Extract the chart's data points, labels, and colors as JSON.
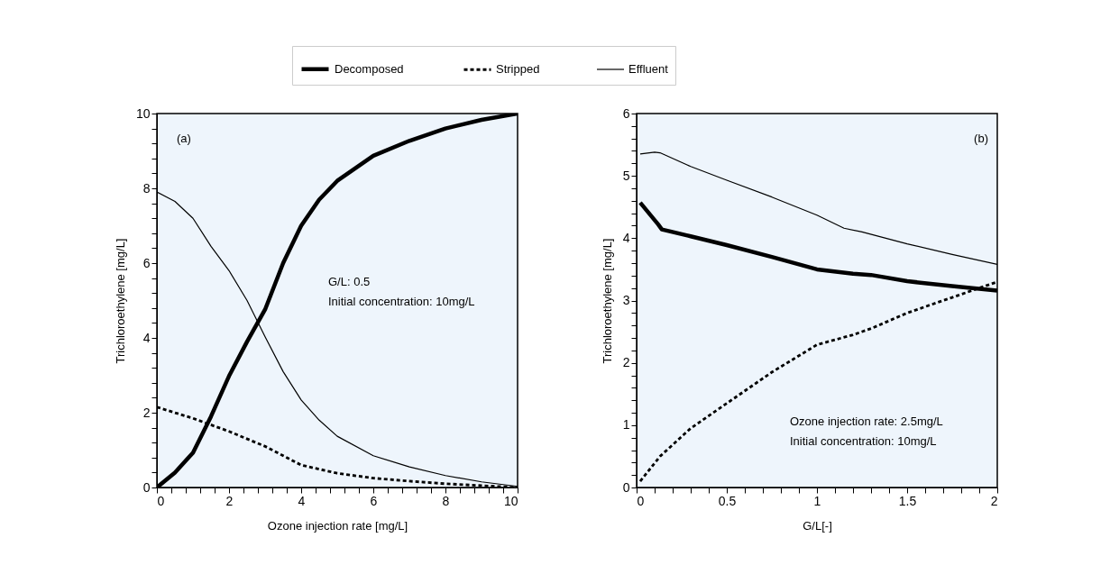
{
  "chart_data": [
    {
      "type": "line",
      "xlabel": "Ozone injection rate [mg/L]",
      "ylabel": "Trichloroethylene [mg/L]",
      "legend": "top",
      "grid": false,
      "annotations": [
        "(a)",
        "G/L: 0.5",
        "Initial concentration: 10mg/L"
      ],
      "xlim": [
        0,
        10
      ],
      "ylim": [
        0,
        10
      ],
      "xticks": [
        0,
        {
          "value": 0.4,
          "label": null
        },
        {
          "value": 0.8,
          "label": null
        },
        {
          "value": 1.2,
          "label": null
        },
        {
          "value": 1.6,
          "label": null
        },
        2,
        {
          "value": 2.4,
          "label": null
        },
        {
          "value": 2.8,
          "label": null
        },
        {
          "value": 3.2,
          "label": null
        },
        {
          "value": 3.6,
          "label": null
        },
        4,
        {
          "value": 4.4,
          "label": null
        },
        {
          "value": 4.8,
          "label": null
        },
        {
          "value": 5.2,
          "label": null
        },
        {
          "value": 5.6,
          "label": null
        },
        6,
        {
          "value": 6.4,
          "label": null
        },
        {
          "value": 6.8,
          "label": null
        },
        {
          "value": 7.2,
          "label": null
        },
        {
          "value": 7.6,
          "label": null
        },
        8,
        {
          "value": 8.4,
          "label": null
        },
        {
          "value": 8.8,
          "label": null
        },
        {
          "value": 9.2,
          "label": null
        },
        {
          "value": 9.6,
          "label": null
        },
        10
      ],
      "yticks": [
        0,
        {
          "value": 0.4,
          "label": null
        },
        {
          "value": 0.8,
          "label": null
        },
        {
          "value": 1.2,
          "label": null
        },
        {
          "value": 1.6,
          "label": null
        },
        2,
        {
          "value": 2.4,
          "label": null
        },
        {
          "value": 2.8,
          "label": null
        },
        {
          "value": 3.2,
          "label": null
        },
        {
          "value": 3.6,
          "label": null
        },
        4,
        {
          "value": 4.4,
          "label": null
        },
        {
          "value": 4.8,
          "label": null
        },
        {
          "value": 5.2,
          "label": null
        },
        {
          "value": 5.6,
          "label": null
        },
        6,
        {
          "value": 6.4,
          "label": null
        },
        {
          "value": 6.8,
          "label": null
        },
        {
          "value": 7.2,
          "label": null
        },
        {
          "value": 7.6,
          "label": null
        },
        8,
        {
          "value": 8.4,
          "label": null
        },
        {
          "value": 8.8,
          "label": null
        },
        {
          "value": 9.2,
          "label": null
        },
        {
          "value": 9.6,
          "label": null
        },
        10
      ],
      "series": [
        {
          "name": "Decomposed",
          "color": "#000000",
          "line_style": "solid",
          "x": [
            0,
            0.5,
            1,
            1.5,
            2,
            2.5,
            3,
            3.5,
            4,
            4.5,
            5,
            6,
            7,
            8,
            9,
            10
          ],
          "values": [
            0,
            0.4,
            0.93,
            1.9,
            2.98,
            3.9,
            4.76,
            6.0,
            7.0,
            7.7,
            8.2,
            8.87,
            9.27,
            9.6,
            9.83,
            10
          ]
        },
        {
          "name": "Stripped",
          "color": "#000000",
          "line_style": "dashed",
          "x": [
            0,
            1,
            2,
            3,
            4,
            5,
            6,
            7,
            8,
            9,
            10
          ],
          "values": [
            2.15,
            1.85,
            1.5,
            1.1,
            0.6,
            0.38,
            0.25,
            0.17,
            0.1,
            0.05,
            0
          ]
        },
        {
          "name": "Effluent",
          "color": "#000000",
          "line_style": "solid",
          "x": [
            0,
            0.5,
            1,
            1.5,
            2,
            2.5,
            3,
            3.5,
            4,
            4.5,
            5,
            6,
            7,
            8,
            9,
            10
          ],
          "values": [
            7.9,
            7.65,
            7.2,
            6.45,
            5.8,
            5.0,
            4.03,
            3.1,
            2.34,
            1.8,
            1.37,
            0.85,
            0.55,
            0.32,
            0.15,
            0.03
          ]
        }
      ]
    },
    {
      "type": "line",
      "xlabel": "G/L[-]",
      "ylabel": "Trichloroethylene [mg/L]",
      "legend": "top",
      "grid": false,
      "annotations": [
        "(b)",
        "Ozone injection rate: 2.5mg/L",
        "Initial concentration: 10mg/L"
      ],
      "xlim": [
        0,
        2
      ],
      "ylim": [
        0,
        6
      ],
      "xticks": [
        0,
        {
          "value": 0.1,
          "label": null
        },
        {
          "value": 0.2,
          "label": null
        },
        {
          "value": 0.3,
          "label": null
        },
        {
          "value": 0.4,
          "label": null
        },
        0.5,
        {
          "value": 0.6,
          "label": null
        },
        {
          "value": 0.7,
          "label": null
        },
        {
          "value": 0.8,
          "label": null
        },
        {
          "value": 0.9,
          "label": null
        },
        1,
        {
          "value": 1.1,
          "label": null
        },
        {
          "value": 1.2,
          "label": null
        },
        {
          "value": 1.3,
          "label": null
        },
        {
          "value": 1.4,
          "label": null
        },
        1.5,
        {
          "value": 1.6,
          "label": null
        },
        {
          "value": 1.7,
          "label": null
        },
        {
          "value": 1.8,
          "label": null
        },
        {
          "value": 1.9,
          "label": null
        },
        2
      ],
      "yticks": [
        0,
        {
          "value": 0.2,
          "label": null
        },
        {
          "value": 0.4,
          "label": null
        },
        {
          "value": 0.6,
          "label": null
        },
        {
          "value": 0.8,
          "label": null
        },
        1,
        {
          "value": 1.2,
          "label": null
        },
        {
          "value": 1.4,
          "label": null
        },
        {
          "value": 1.6,
          "label": null
        },
        {
          "value": 1.8,
          "label": null
        },
        2,
        {
          "value": 2.2,
          "label": null
        },
        {
          "value": 2.4,
          "label": null
        },
        {
          "value": 2.6,
          "label": null
        },
        {
          "value": 2.8,
          "label": null
        },
        3,
        {
          "value": 3.2,
          "label": null
        },
        {
          "value": 3.4,
          "label": null
        },
        {
          "value": 3.6,
          "label": null
        },
        {
          "value": 3.8,
          "label": null
        },
        4,
        {
          "value": 4.2,
          "label": null
        },
        {
          "value": 4.4,
          "label": null
        },
        {
          "value": 4.6,
          "label": null
        },
        {
          "value": 4.8,
          "label": null
        },
        5,
        {
          "value": 5.2,
          "label": null
        },
        {
          "value": 5.4,
          "label": null
        },
        {
          "value": 5.6,
          "label": null
        },
        {
          "value": 5.8,
          "label": null
        },
        6
      ],
      "series": [
        {
          "name": "Decomposed",
          "color": "#000000",
          "line_style": "solid",
          "x": [
            0.02,
            0.12,
            0.14,
            0.3,
            0.5,
            0.75,
            1,
            1.2,
            1.3,
            1.5,
            1.75,
            2
          ],
          "values": [
            4.57,
            4.22,
            4.14,
            4.03,
            3.89,
            3.7,
            3.5,
            3.43,
            3.41,
            3.31,
            3.23,
            3.16
          ]
        },
        {
          "name": "Stripped",
          "color": "#000000",
          "line_style": "dashed",
          "x": [
            0.02,
            0.13,
            0.3,
            0.5,
            0.75,
            1,
            1.2,
            1.3,
            1.5,
            1.75,
            2
          ],
          "values": [
            0.1,
            0.5,
            0.95,
            1.35,
            1.85,
            2.29,
            2.45,
            2.55,
            2.8,
            3.05,
            3.3
          ]
        },
        {
          "name": "Effluent",
          "color": "#000000",
          "line_style": "solid",
          "x": [
            0.02,
            0.1,
            0.13,
            0.3,
            0.5,
            0.75,
            1,
            1.15,
            1.25,
            1.5,
            1.75,
            2
          ],
          "values": [
            5.35,
            5.38,
            5.37,
            5.15,
            4.93,
            4.66,
            4.37,
            4.16,
            4.1,
            3.91,
            3.74,
            3.58
          ]
        }
      ]
    }
  ]
}
